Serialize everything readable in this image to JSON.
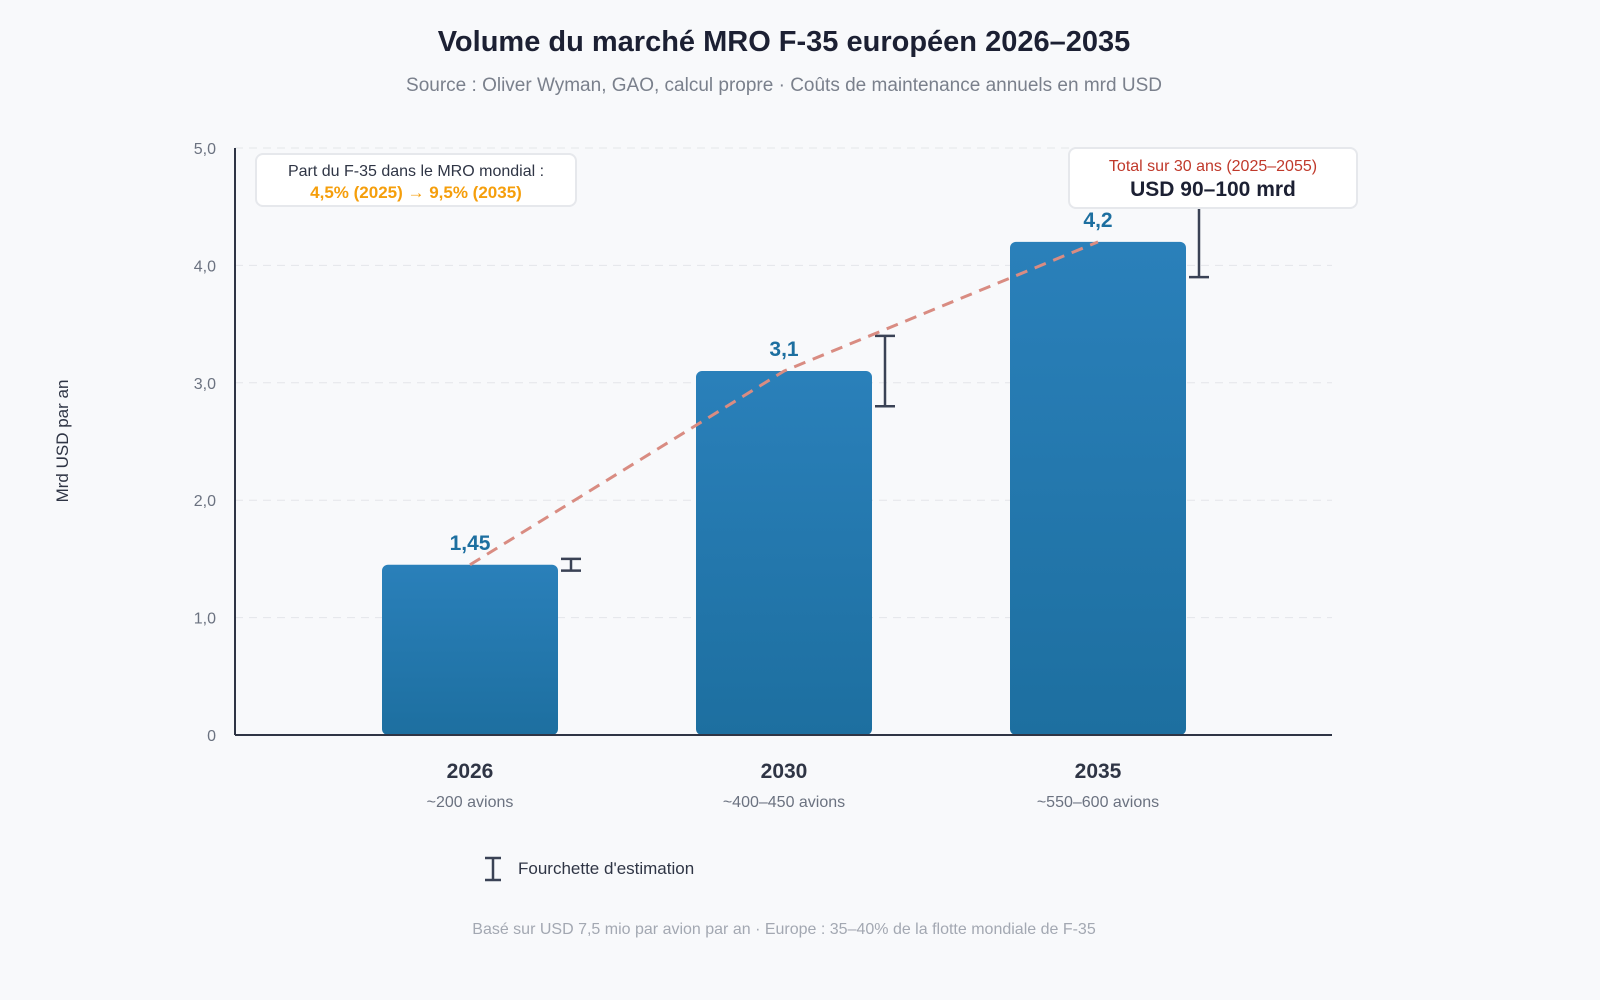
{
  "chart_data": {
    "type": "bar",
    "title": "Volume du marché MRO F-35 européen 2026–2035",
    "subtitle": "Source : Oliver Wyman, GAO, calcul propre · Coûts de maintenance annuels en mrd USD",
    "ylabel": "Mrd USD par an",
    "xlabel": "",
    "ylim": [
      0,
      5
    ],
    "yticks": [
      0,
      1,
      2,
      3,
      4,
      5
    ],
    "ytick_labels": [
      "0",
      "1,0",
      "2,0",
      "3,0",
      "4,0",
      "5,0"
    ],
    "grid": true,
    "categories": [
      "2026",
      "2030",
      "2035"
    ],
    "category_sublabels": [
      "~200 avions",
      "~400–450 avions",
      "~550–600 avions"
    ],
    "values": [
      1.45,
      3.1,
      4.2
    ],
    "value_labels": [
      "1,45",
      "3,1",
      "4,2"
    ],
    "error_ranges": [
      [
        1.4,
        1.5
      ],
      [
        2.8,
        3.4
      ],
      [
        3.9,
        4.5
      ]
    ],
    "trend_line": "dashed",
    "legend": {
      "label": "Fourchette d'estimation",
      "placement": "bottom"
    },
    "annotations": {
      "share": {
        "line1": "Part du F-35 dans le MRO mondial :",
        "line2": "4,5% (2025) → 9,5% (2035)"
      },
      "total": {
        "line1": "Total sur 30 ans (2025–2055)",
        "line2": "USD 90–100 mrd"
      }
    },
    "footer": "Basé sur USD 7,5 mio par avion par an · Europe : 35–40% de la flotte mondiale de F-35"
  },
  "colors": {
    "bar_top": "#2a80ba",
    "bar_bottom": "#1d6fa0",
    "value_label": "#1d6fa0",
    "trend": "#d98c82",
    "error_bar": "#3a4255",
    "share_highlight": "#f59e0b",
    "total_highlight": "#c0392b"
  }
}
